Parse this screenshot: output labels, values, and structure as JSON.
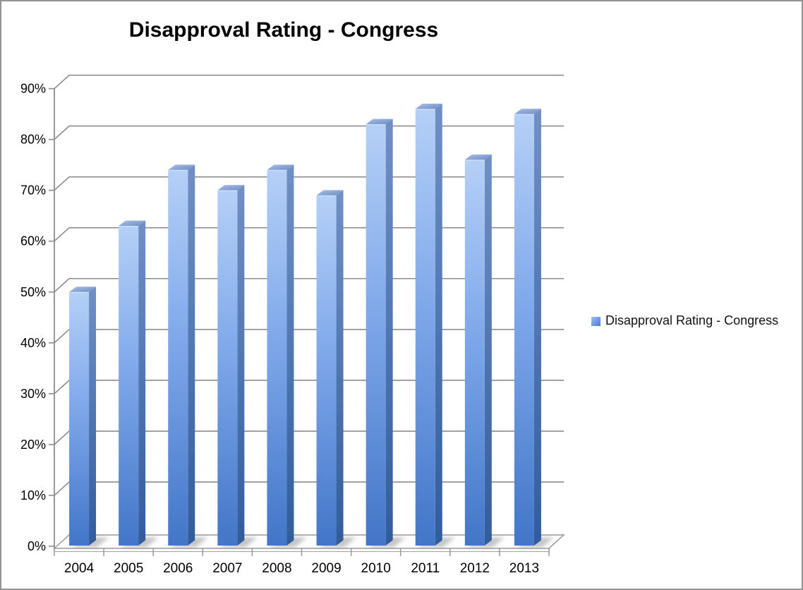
{
  "chart": {
    "title": "Disapproval Rating - Congress",
    "legend_label": "Disapproval Rating - Congress"
  },
  "chart_data": {
    "type": "bar",
    "style": "3d-beveled-columns",
    "title": "Disapproval Rating - Congress",
    "categories": [
      "2004",
      "2005",
      "2006",
      "2007",
      "2008",
      "2009",
      "2010",
      "2011",
      "2012",
      "2013"
    ],
    "series": [
      {
        "name": "Disapproval Rating - Congress",
        "values": [
          50,
          63,
          74,
          70,
          74,
          69,
          83,
          86,
          76,
          85
        ]
      }
    ],
    "unit": "%",
    "xlabel": "",
    "ylabel": "",
    "ylim": [
      0,
      90
    ],
    "ytick_step": 10,
    "ytick_labels": [
      "0%",
      "10%",
      "20%",
      "30%",
      "40%",
      "50%",
      "60%",
      "70%",
      "80%",
      "90%"
    ],
    "grid": true,
    "legend_position": "right",
    "colors": {
      "bar_front_light": "#b5d0f7",
      "bar_front_mid": "#7fa8ea",
      "bar_front_dark": "#4376c8",
      "bar_side_light": "#7090c5",
      "bar_side_dark": "#315c9c",
      "bar_top_light": "#a9c0ea",
      "bar_top_dark": "#6d8cc0",
      "gridline": "#8c8c8c",
      "floor_edge": "#999999",
      "shadow": "#8f8f8f",
      "text": "#000000"
    }
  }
}
